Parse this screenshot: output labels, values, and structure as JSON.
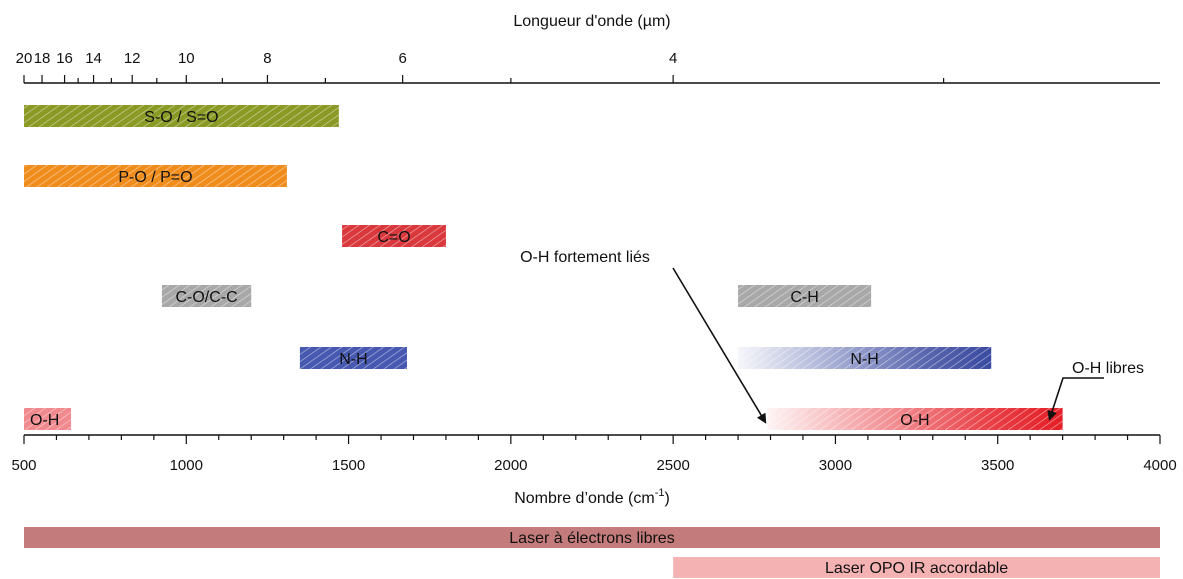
{
  "chart_data": {
    "type": "range_bar",
    "top_axis": {
      "title": "Longueur d'onde (µm)",
      "tick_labels": [
        "20",
        "18",
        "16",
        "14",
        "12",
        "10",
        "8",
        "6",
        "4"
      ],
      "tick_values": [
        20,
        18,
        16,
        14,
        12,
        10,
        8,
        6,
        4
      ],
      "minor_tick_values": [
        15,
        13,
        11,
        9,
        7,
        5,
        3
      ]
    },
    "bottom_axis": {
      "title_main": "Nombre d’onde (cm",
      "title_sup": "-1",
      "title_end": ")",
      "tick_labels": [
        "500",
        "1000",
        "1500",
        "2000",
        "2500",
        "3000",
        "3500",
        "4000"
      ],
      "tick_values": [
        500,
        1000,
        1500,
        2000,
        2500,
        3000,
        3500,
        4000
      ],
      "xlim": [
        500,
        4000
      ]
    },
    "bands": [
      {
        "label": "S-O / S=O",
        "x_start": 500,
        "x_end": 1470,
        "row": 0,
        "color": "#8a9a24",
        "fade": "none"
      },
      {
        "label": "P-O / P=O",
        "x_start": 500,
        "x_end": 1310,
        "row": 1,
        "color": "#f08c1c",
        "fade": "none"
      },
      {
        "label": "C=O",
        "x_start": 1480,
        "x_end": 1800,
        "row": 2,
        "color": "#d9383c",
        "fade": "none"
      },
      {
        "label": "C-O/C-C",
        "x_start": 925,
        "x_end": 1200,
        "row": 3,
        "color": "#a8a8a8",
        "fade": "none"
      },
      {
        "label": "C-H",
        "x_start": 2700,
        "x_end": 3110,
        "row": 3,
        "color": "#a8a8a8",
        "fade": "none"
      },
      {
        "label": "N-H",
        "x_start": 1350,
        "x_end": 1680,
        "row": 4,
        "color": "#4658b0",
        "fade": "none"
      },
      {
        "label": "N-H",
        "x_start": 2700,
        "x_end": 3480,
        "row": 4,
        "color": "#3a4aa0",
        "fade": "left"
      },
      {
        "label": "O-H",
        "x_start": 500,
        "x_end": 645,
        "row": 5,
        "color": "#f08a8e",
        "fade": "none"
      },
      {
        "label": "O-H",
        "x_start": 2790,
        "x_end": 3700,
        "row": 5,
        "color": "#e41e26",
        "fade": "left"
      }
    ],
    "annotations": [
      {
        "text": "O-H fortement liés",
        "arrow_to": 2790
      },
      {
        "text": "O-H libres",
        "arrow_to": 3660
      }
    ],
    "lasers": [
      {
        "label": "Laser à électrons libres",
        "x_start": 500,
        "x_end": 4000,
        "color": "#c37b7b"
      },
      {
        "label": "Laser OPO IR accordable",
        "x_start": 2500,
        "x_end": 4000,
        "color": "#f4b2b3"
      }
    ]
  }
}
